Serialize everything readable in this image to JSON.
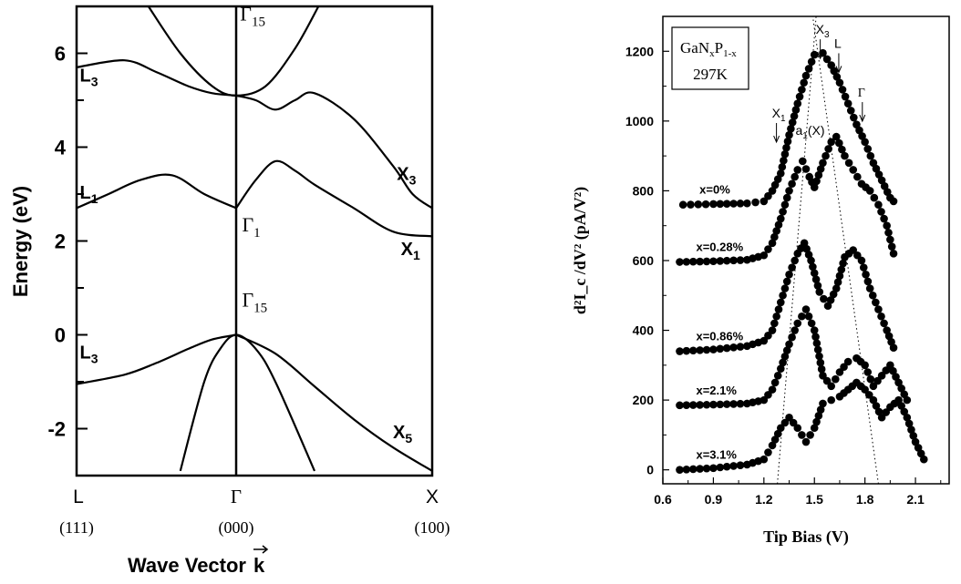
{
  "chart_data": [
    {
      "type": "line",
      "xlabel": "Wave Vector",
      "xlabel_symbol": "k",
      "ylabel": "Energy (eV)",
      "ylim": [
        -3,
        7
      ],
      "y_ticks": [
        "6",
        "4",
        "2",
        "0",
        "-2"
      ],
      "k_points": [
        {
          "symbol": "L",
          "index": "(111)"
        },
        {
          "symbol": "Γ",
          "index": "(000)"
        },
        {
          "symbol": "X",
          "index": "(100)"
        }
      ],
      "grid": false,
      "point_labels": [
        {
          "sym": "Γ",
          "sub": "15",
          "k": 0.02,
          "e": 6.7
        },
        {
          "sym": "L",
          "sub": "3",
          "k": -0.98,
          "e": 5.4
        },
        {
          "sym": "L",
          "sub": "1",
          "k": -0.98,
          "e": 2.9
        },
        {
          "sym": "Γ",
          "sub": "1",
          "k": 0.03,
          "e": 2.2
        },
        {
          "sym": "X",
          "sub": "3",
          "k": 0.82,
          "e": 3.3
        },
        {
          "sym": "X",
          "sub": "1",
          "k": 0.84,
          "e": 1.7
        },
        {
          "sym": "Γ",
          "sub": "15",
          "k": 0.03,
          "e": 0.6
        },
        {
          "sym": "L",
          "sub": "3",
          "k": -0.98,
          "e": -0.5
        },
        {
          "sym": "X",
          "sub": "5",
          "k": 0.8,
          "e": -2.2
        }
      ],
      "bands": [
        {
          "k": [
            -1.0,
            -0.7,
            -0.5,
            -0.3,
            -0.15,
            0.0
          ],
          "e": [
            5.7,
            5.85,
            5.6,
            5.3,
            5.15,
            5.1
          ]
        },
        {
          "k": [
            0.0,
            0.1,
            0.2,
            0.3,
            0.4,
            0.6,
            0.8,
            0.9,
            1.0
          ],
          "e": [
            5.1,
            5.0,
            4.8,
            5.0,
            5.15,
            4.6,
            3.6,
            3.0,
            2.7
          ]
        },
        {
          "k": [
            -1.0,
            -0.8,
            -0.6,
            -0.4,
            -0.2,
            0.0
          ],
          "e": [
            2.7,
            3.0,
            3.3,
            3.4,
            3.0,
            2.7
          ]
        },
        {
          "k": [
            0.0,
            0.1,
            0.2,
            0.3,
            0.4,
            0.6,
            0.8,
            1.0
          ],
          "e": [
            2.7,
            3.3,
            3.7,
            3.5,
            3.2,
            2.7,
            2.2,
            2.1
          ]
        },
        {
          "k": [
            -0.55,
            -0.35,
            -0.15,
            0.0,
            0.15,
            0.3,
            0.42
          ],
          "e": [
            7.0,
            6.0,
            5.3,
            5.1,
            5.3,
            6.1,
            7.0
          ]
        },
        {
          "k": [
            -1.0,
            -0.7,
            -0.5,
            -0.3,
            -0.15,
            0.0
          ],
          "e": [
            -1.05,
            -0.85,
            -0.6,
            -0.3,
            -0.1,
            0.0
          ]
        },
        {
          "k": [
            0.0,
            0.2,
            0.4,
            0.6,
            0.8,
            1.0
          ],
          "e": [
            0.0,
            -0.4,
            -1.1,
            -1.8,
            -2.4,
            -2.9
          ]
        },
        {
          "k": [
            -0.35,
            -0.2,
            -0.1,
            0.0,
            0.1,
            0.2,
            0.4
          ],
          "e": [
            -2.9,
            -1.0,
            -0.3,
            0.0,
            -0.3,
            -1.0,
            -2.9
          ]
        }
      ]
    },
    {
      "type": "scatter",
      "xlabel": "Tip Bias (V)",
      "ylabel": "d²I_c /dV² (pA/V²)",
      "xlim": [
        0.6,
        2.3
      ],
      "ylim": [
        -40,
        1300
      ],
      "x_ticks": [
        0.6,
        0.9,
        1.2,
        1.5,
        1.8,
        2.1
      ],
      "y_ticks": [
        0,
        200,
        400,
        600,
        800,
        1000,
        1200
      ],
      "grid": false,
      "legend_box": {
        "line1": "GaN",
        "line1_sub1": "x",
        "line1_mid": "P",
        "line1_sub2": "1-x",
        "line2": "297K"
      },
      "annotations": [
        {
          "sym": "X",
          "sub": "3",
          "x": 1.54,
          "y": 1250
        },
        {
          "sym": "L",
          "sub": "",
          "x": 1.65,
          "y": 1210
        },
        {
          "sym": "Γ",
          "sub": "",
          "x": 1.79,
          "y": 1070
        },
        {
          "sym": "X",
          "sub": "1",
          "x": 1.28,
          "y": 1010
        },
        {
          "sym": "a",
          "sub": "1",
          "post": "(X)",
          "x": 1.42,
          "y": 960
        }
      ],
      "guide_lines": [
        {
          "x": [
            1.28,
            1.51
          ],
          "y": [
            -40,
            1300
          ]
        },
        {
          "x": [
            1.88,
            1.49
          ],
          "y": [
            -40,
            1300
          ]
        }
      ],
      "series": [
        {
          "name": "x=0%",
          "x": [
            0.72,
            0.9,
            1.1,
            1.2,
            1.25,
            1.3,
            1.35,
            1.4,
            1.45,
            1.5,
            1.55,
            1.6,
            1.65,
            1.7,
            1.75,
            1.8,
            1.85,
            1.9,
            1.95,
            1.97
          ],
          "y": [
            760,
            762,
            764,
            770,
            800,
            850,
            960,
            1050,
            1130,
            1190,
            1195,
            1160,
            1110,
            1050,
            990,
            940,
            880,
            830,
            780,
            770
          ]
        },
        {
          "name": "x=0.28%",
          "x": [
            0.7,
            0.9,
            1.1,
            1.2,
            1.25,
            1.3,
            1.35,
            1.4,
            1.43,
            1.47,
            1.5,
            1.55,
            1.6,
            1.63,
            1.68,
            1.73,
            1.78,
            1.83,
            1.88,
            1.93,
            1.97
          ],
          "y": [
            596,
            598,
            602,
            615,
            650,
            720,
            800,
            860,
            885,
            840,
            810,
            880,
            940,
            955,
            900,
            860,
            820,
            800,
            760,
            700,
            620
          ]
        },
        {
          "name": "x=0.86%",
          "x": [
            0.7,
            0.9,
            1.1,
            1.2,
            1.25,
            1.3,
            1.35,
            1.4,
            1.44,
            1.48,
            1.53,
            1.58,
            1.63,
            1.68,
            1.73,
            1.78,
            1.83,
            1.88,
            1.93,
            1.97
          ],
          "y": [
            340,
            345,
            355,
            370,
            400,
            480,
            560,
            620,
            650,
            600,
            510,
            470,
            520,
            610,
            630,
            600,
            520,
            460,
            400,
            350
          ]
        },
        {
          "name": "x=2.1%",
          "x": [
            0.7,
            0.9,
            1.1,
            1.2,
            1.25,
            1.3,
            1.35,
            1.4,
            1.45,
            1.5,
            1.55,
            1.6,
            1.65,
            1.7,
            1.75,
            1.8,
            1.85,
            1.9,
            1.95,
            2.0,
            2.05
          ],
          "y": [
            185,
            187,
            190,
            200,
            230,
            290,
            360,
            420,
            460,
            400,
            270,
            240,
            280,
            310,
            320,
            300,
            240,
            270,
            300,
            250,
            200
          ]
        },
        {
          "name": "x=3.1%",
          "x": [
            0.7,
            0.9,
            1.1,
            1.2,
            1.25,
            1.3,
            1.35,
            1.4,
            1.45,
            1.5,
            1.55,
            1.6,
            1.65,
            1.7,
            1.75,
            1.8,
            1.85,
            1.9,
            1.95,
            2.0,
            2.05,
            2.1,
            2.15
          ],
          "y": [
            0,
            5,
            15,
            30,
            70,
            120,
            150,
            120,
            80,
            120,
            190,
            200,
            210,
            230,
            250,
            230,
            200,
            150,
            180,
            200,
            150,
            80,
            30
          ]
        }
      ]
    }
  ]
}
